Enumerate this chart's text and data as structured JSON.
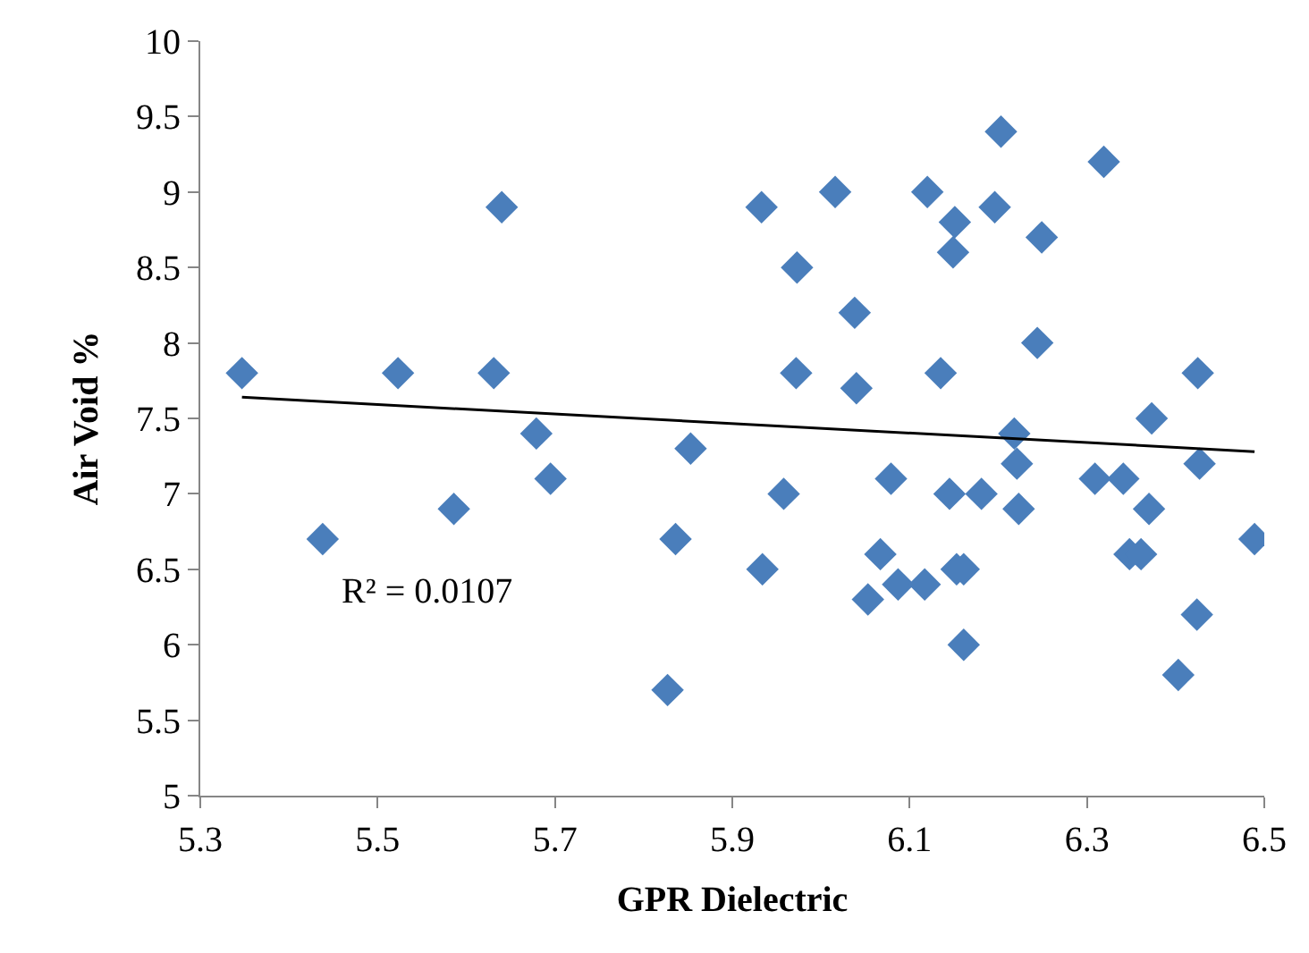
{
  "chart_data": {
    "type": "scatter",
    "xlabel": "GPR Dielectric",
    "ylabel": "Air Void %",
    "marker": "diamond",
    "xlim": [
      5.3,
      6.5
    ],
    "xticks": [
      5.3,
      5.5,
      5.7,
      5.9,
      6.1,
      6.3,
      6.5
    ],
    "ylim": [
      5,
      10
    ],
    "yticks": [
      5,
      5.5,
      6,
      6.5,
      7,
      7.5,
      8,
      8.5,
      9,
      9.5,
      10
    ],
    "annotations": [
      "R² = 0.0107"
    ],
    "series": [
      {
        "color": "#4a7ebb",
        "x": [
          5.347,
          5.438,
          5.523,
          5.586,
          5.64,
          5.631,
          5.679,
          5.695,
          5.853,
          5.836,
          5.827,
          5.933,
          6.016,
          5.973,
          6.038,
          5.972,
          6.04,
          5.958,
          5.934,
          6.079,
          6.067,
          6.053,
          6.087,
          6.117,
          6.12,
          6.151,
          6.149,
          6.135,
          6.145,
          6.181,
          6.153,
          6.161,
          6.161,
          6.203,
          6.196,
          6.249,
          6.244,
          6.218,
          6.221,
          6.223,
          6.319,
          6.309,
          6.341,
          6.37,
          6.373,
          6.425,
          6.427,
          6.348,
          6.361,
          6.489,
          6.424,
          6.403
        ],
        "values": [
          7.8,
          6.7,
          7.8,
          6.9,
          8.9,
          7.8,
          7.4,
          7.1,
          7.3,
          6.7,
          5.7,
          8.9,
          9.0,
          8.5,
          8.2,
          7.8,
          7.7,
          7.0,
          6.5,
          7.1,
          6.6,
          6.3,
          6.4,
          6.4,
          9.0,
          8.8,
          8.6,
          7.8,
          7.0,
          7.0,
          6.5,
          6.5,
          6.0,
          9.4,
          8.9,
          8.7,
          8.0,
          7.4,
          7.2,
          6.9,
          9.2,
          7.1,
          7.1,
          6.9,
          7.5,
          7.8,
          7.2,
          6.6,
          6.6,
          6.7,
          6.2,
          5.8
        ]
      },
      {
        "type": "line",
        "color": "#000000",
        "marker": "none",
        "line_style": "solid",
        "x": [
          5.347,
          6.489
        ],
        "values": [
          7.64,
          7.28
        ]
      }
    ]
  }
}
